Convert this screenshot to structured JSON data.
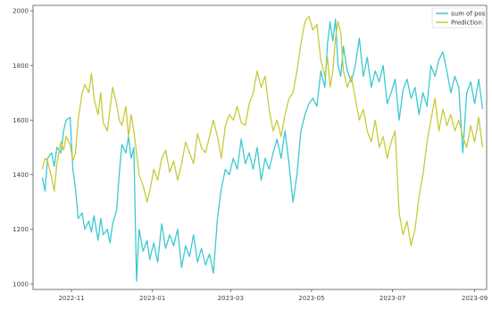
{
  "chart_data": {
    "type": "line",
    "title": "",
    "xlabel": "",
    "ylabel": "",
    "x_range": [
      "2022-10-03",
      "2023-09-10"
    ],
    "ylim": [
      980,
      2020
    ],
    "grid": false,
    "legend_position": "top-right",
    "x_ticks": [
      {
        "date": "2022-11-01",
        "label": "2022-11"
      },
      {
        "date": "2023-01-01",
        "label": "2023-01"
      },
      {
        "date": "2023-03-01",
        "label": "2023-03"
      },
      {
        "date": "2023-05-01",
        "label": "2023-05"
      },
      {
        "date": "2023-07-01",
        "label": "2023-07"
      },
      {
        "date": "2023-09-01",
        "label": "2023-09"
      }
    ],
    "y_ticks": [
      1000,
      1200,
      1400,
      1600,
      1800,
      2000
    ],
    "series": [
      {
        "name": "sum of pos",
        "color": "#3cc9cf",
        "points": [
          [
            "2022-10-10",
            1390
          ],
          [
            "2022-10-12",
            1340
          ],
          [
            "2022-10-14",
            1460
          ],
          [
            "2022-10-17",
            1480
          ],
          [
            "2022-10-19",
            1430
          ],
          [
            "2022-10-21",
            1500
          ],
          [
            "2022-10-24",
            1480
          ],
          [
            "2022-10-26",
            1560
          ],
          [
            "2022-10-28",
            1600
          ],
          [
            "2022-10-31",
            1610
          ],
          [
            "2022-11-02",
            1420
          ],
          [
            "2022-11-04",
            1350
          ],
          [
            "2022-11-06",
            1240
          ],
          [
            "2022-11-09",
            1260
          ],
          [
            "2022-11-11",
            1200
          ],
          [
            "2022-11-14",
            1230
          ],
          [
            "2022-11-16",
            1190
          ],
          [
            "2022-11-18",
            1250
          ],
          [
            "2022-11-21",
            1160
          ],
          [
            "2022-11-23",
            1240
          ],
          [
            "2022-11-25",
            1180
          ],
          [
            "2022-11-28",
            1200
          ],
          [
            "2022-11-30",
            1150
          ],
          [
            "2022-12-02",
            1220
          ],
          [
            "2022-12-05",
            1270
          ],
          [
            "2022-12-07",
            1400
          ],
          [
            "2022-12-09",
            1510
          ],
          [
            "2022-12-12",
            1480
          ],
          [
            "2022-12-14",
            1540
          ],
          [
            "2022-12-16",
            1460
          ],
          [
            "2022-12-18",
            1500
          ],
          [
            "2022-12-20",
            1010
          ],
          [
            "2022-12-22",
            1200
          ],
          [
            "2022-12-25",
            1120
          ],
          [
            "2022-12-28",
            1160
          ],
          [
            "2022-12-30",
            1090
          ],
          [
            "2023-01-02",
            1150
          ],
          [
            "2023-01-05",
            1080
          ],
          [
            "2023-01-08",
            1220
          ],
          [
            "2023-01-11",
            1130
          ],
          [
            "2023-01-14",
            1180
          ],
          [
            "2023-01-17",
            1140
          ],
          [
            "2023-01-20",
            1200
          ],
          [
            "2023-01-23",
            1060
          ],
          [
            "2023-01-26",
            1140
          ],
          [
            "2023-01-29",
            1100
          ],
          [
            "2023-02-01",
            1180
          ],
          [
            "2023-02-04",
            1080
          ],
          [
            "2023-02-07",
            1130
          ],
          [
            "2023-02-10",
            1070
          ],
          [
            "2023-02-13",
            1110
          ],
          [
            "2023-02-16",
            1040
          ],
          [
            "2023-02-19",
            1240
          ],
          [
            "2023-02-22",
            1350
          ],
          [
            "2023-02-25",
            1420
          ],
          [
            "2023-02-28",
            1400
          ],
          [
            "2023-03-03",
            1460
          ],
          [
            "2023-03-06",
            1420
          ],
          [
            "2023-03-09",
            1530
          ],
          [
            "2023-03-12",
            1440
          ],
          [
            "2023-03-15",
            1480
          ],
          [
            "2023-03-18",
            1420
          ],
          [
            "2023-03-21",
            1500
          ],
          [
            "2023-03-24",
            1380
          ],
          [
            "2023-03-27",
            1460
          ],
          [
            "2023-03-30",
            1420
          ],
          [
            "2023-04-02",
            1480
          ],
          [
            "2023-04-05",
            1530
          ],
          [
            "2023-04-08",
            1460
          ],
          [
            "2023-04-11",
            1560
          ],
          [
            "2023-04-14",
            1440
          ],
          [
            "2023-04-17",
            1300
          ],
          [
            "2023-04-20",
            1400
          ],
          [
            "2023-04-23",
            1560
          ],
          [
            "2023-04-26",
            1620
          ],
          [
            "2023-04-29",
            1660
          ],
          [
            "2023-05-02",
            1680
          ],
          [
            "2023-05-05",
            1650
          ],
          [
            "2023-05-08",
            1780
          ],
          [
            "2023-05-11",
            1720
          ],
          [
            "2023-05-13",
            1880
          ],
          [
            "2023-05-15",
            1960
          ],
          [
            "2023-05-17",
            1890
          ],
          [
            "2023-05-19",
            1970
          ],
          [
            "2023-05-21",
            1800
          ],
          [
            "2023-05-23",
            1760
          ],
          [
            "2023-05-25",
            1870
          ],
          [
            "2023-05-28",
            1780
          ],
          [
            "2023-05-31",
            1740
          ],
          [
            "2023-06-03",
            1800
          ],
          [
            "2023-06-06",
            1900
          ],
          [
            "2023-06-09",
            1760
          ],
          [
            "2023-06-12",
            1830
          ],
          [
            "2023-06-15",
            1720
          ],
          [
            "2023-06-18",
            1780
          ],
          [
            "2023-06-21",
            1740
          ],
          [
            "2023-06-24",
            1800
          ],
          [
            "2023-06-27",
            1660
          ],
          [
            "2023-06-30",
            1700
          ],
          [
            "2023-07-03",
            1750
          ],
          [
            "2023-07-06",
            1600
          ],
          [
            "2023-07-09",
            1710
          ],
          [
            "2023-07-12",
            1750
          ],
          [
            "2023-07-15",
            1680
          ],
          [
            "2023-07-18",
            1720
          ],
          [
            "2023-07-21",
            1620
          ],
          [
            "2023-07-24",
            1700
          ],
          [
            "2023-07-27",
            1650
          ],
          [
            "2023-07-30",
            1800
          ],
          [
            "2023-08-02",
            1760
          ],
          [
            "2023-08-05",
            1820
          ],
          [
            "2023-08-08",
            1850
          ],
          [
            "2023-08-11",
            1780
          ],
          [
            "2023-08-14",
            1700
          ],
          [
            "2023-08-17",
            1760
          ],
          [
            "2023-08-20",
            1720
          ],
          [
            "2023-08-23",
            1480
          ],
          [
            "2023-08-26",
            1700
          ],
          [
            "2023-08-29",
            1740
          ],
          [
            "2023-09-01",
            1660
          ],
          [
            "2023-09-04",
            1750
          ],
          [
            "2023-09-07",
            1640
          ]
        ]
      },
      {
        "name": "Prediction",
        "color": "#c9c93a",
        "points": [
          [
            "2022-10-10",
            1420
          ],
          [
            "2022-10-12",
            1460
          ],
          [
            "2022-10-14",
            1450
          ],
          [
            "2022-10-17",
            1390
          ],
          [
            "2022-10-19",
            1340
          ],
          [
            "2022-10-21",
            1440
          ],
          [
            "2022-10-24",
            1520
          ],
          [
            "2022-10-26",
            1490
          ],
          [
            "2022-10-28",
            1540
          ],
          [
            "2022-10-31",
            1510
          ],
          [
            "2022-11-02",
            1450
          ],
          [
            "2022-11-04",
            1480
          ],
          [
            "2022-11-06",
            1600
          ],
          [
            "2022-11-09",
            1700
          ],
          [
            "2022-11-11",
            1730
          ],
          [
            "2022-11-14",
            1700
          ],
          [
            "2022-11-16",
            1770
          ],
          [
            "2022-11-18",
            1680
          ],
          [
            "2022-11-21",
            1620
          ],
          [
            "2022-11-23",
            1700
          ],
          [
            "2022-11-25",
            1590
          ],
          [
            "2022-11-28",
            1560
          ],
          [
            "2022-11-30",
            1640
          ],
          [
            "2022-12-02",
            1720
          ],
          [
            "2022-12-05",
            1660
          ],
          [
            "2022-12-07",
            1600
          ],
          [
            "2022-12-09",
            1580
          ],
          [
            "2022-12-12",
            1650
          ],
          [
            "2022-12-14",
            1540
          ],
          [
            "2022-12-16",
            1620
          ],
          [
            "2022-12-18",
            1560
          ],
          [
            "2022-12-20",
            1480
          ],
          [
            "2022-12-22",
            1400
          ],
          [
            "2022-12-25",
            1360
          ],
          [
            "2022-12-28",
            1300
          ],
          [
            "2022-12-30",
            1340
          ],
          [
            "2023-01-02",
            1420
          ],
          [
            "2023-01-05",
            1380
          ],
          [
            "2023-01-08",
            1460
          ],
          [
            "2023-01-11",
            1490
          ],
          [
            "2023-01-14",
            1410
          ],
          [
            "2023-01-17",
            1450
          ],
          [
            "2023-01-20",
            1380
          ],
          [
            "2023-01-23",
            1440
          ],
          [
            "2023-01-26",
            1520
          ],
          [
            "2023-01-29",
            1480
          ],
          [
            "2023-02-01",
            1440
          ],
          [
            "2023-02-04",
            1550
          ],
          [
            "2023-02-07",
            1500
          ],
          [
            "2023-02-10",
            1480
          ],
          [
            "2023-02-13",
            1540
          ],
          [
            "2023-02-16",
            1600
          ],
          [
            "2023-02-19",
            1540
          ],
          [
            "2023-02-22",
            1460
          ],
          [
            "2023-02-25",
            1580
          ],
          [
            "2023-02-28",
            1620
          ],
          [
            "2023-03-03",
            1600
          ],
          [
            "2023-03-06",
            1650
          ],
          [
            "2023-03-09",
            1590
          ],
          [
            "2023-03-12",
            1580
          ],
          [
            "2023-03-15",
            1660
          ],
          [
            "2023-03-18",
            1700
          ],
          [
            "2023-03-21",
            1780
          ],
          [
            "2023-03-24",
            1720
          ],
          [
            "2023-03-27",
            1760
          ],
          [
            "2023-03-30",
            1640
          ],
          [
            "2023-04-02",
            1560
          ],
          [
            "2023-04-05",
            1600
          ],
          [
            "2023-04-08",
            1540
          ],
          [
            "2023-04-11",
            1620
          ],
          [
            "2023-04-14",
            1680
          ],
          [
            "2023-04-17",
            1700
          ],
          [
            "2023-04-20",
            1780
          ],
          [
            "2023-04-23",
            1880
          ],
          [
            "2023-04-26",
            1960
          ],
          [
            "2023-04-29",
            1980
          ],
          [
            "2023-05-02",
            1930
          ],
          [
            "2023-05-05",
            1950
          ],
          [
            "2023-05-08",
            1820
          ],
          [
            "2023-05-11",
            1760
          ],
          [
            "2023-05-13",
            1830
          ],
          [
            "2023-05-15",
            1720
          ],
          [
            "2023-05-17",
            1780
          ],
          [
            "2023-05-19",
            1900
          ],
          [
            "2023-05-21",
            1960
          ],
          [
            "2023-05-23",
            1920
          ],
          [
            "2023-05-25",
            1780
          ],
          [
            "2023-05-28",
            1720
          ],
          [
            "2023-05-31",
            1760
          ],
          [
            "2023-06-03",
            1680
          ],
          [
            "2023-06-06",
            1600
          ],
          [
            "2023-06-09",
            1640
          ],
          [
            "2023-06-12",
            1560
          ],
          [
            "2023-06-15",
            1520
          ],
          [
            "2023-06-18",
            1600
          ],
          [
            "2023-06-21",
            1500
          ],
          [
            "2023-06-24",
            1540
          ],
          [
            "2023-06-27",
            1460
          ],
          [
            "2023-06-30",
            1520
          ],
          [
            "2023-07-03",
            1560
          ],
          [
            "2023-07-06",
            1260
          ],
          [
            "2023-07-09",
            1180
          ],
          [
            "2023-07-12",
            1230
          ],
          [
            "2023-07-15",
            1140
          ],
          [
            "2023-07-18",
            1200
          ],
          [
            "2023-07-21",
            1320
          ],
          [
            "2023-07-24",
            1400
          ],
          [
            "2023-07-27",
            1520
          ],
          [
            "2023-07-30",
            1600
          ],
          [
            "2023-08-02",
            1680
          ],
          [
            "2023-08-05",
            1560
          ],
          [
            "2023-08-08",
            1640
          ],
          [
            "2023-08-11",
            1580
          ],
          [
            "2023-08-14",
            1620
          ],
          [
            "2023-08-17",
            1560
          ],
          [
            "2023-08-20",
            1600
          ],
          [
            "2023-08-23",
            1540
          ],
          [
            "2023-08-26",
            1500
          ],
          [
            "2023-08-29",
            1580
          ],
          [
            "2023-09-01",
            1520
          ],
          [
            "2023-09-04",
            1610
          ],
          [
            "2023-09-07",
            1500
          ]
        ]
      }
    ]
  }
}
